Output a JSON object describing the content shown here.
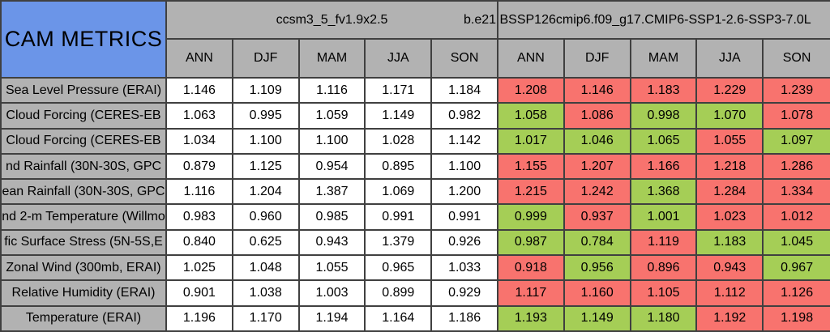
{
  "colors": {
    "blue": "#6b95e8",
    "gray": "#b2b2b2",
    "red": "#f8736e",
    "green": "#a5ce56",
    "border": "#404040",
    "white": "#ffffff"
  },
  "chart_data": {
    "type": "table",
    "title": "CAM METRICS",
    "column_groups": [
      "ccsm3_5_fv1.9x2.5",
      "b.e21.BSSP126cmip6.f09_g17.CMIP6-SSP1-2.6-SSP3-7.0L"
    ],
    "seasons": [
      "ANN",
      "DJF",
      "MAM",
      "JJA",
      "SON"
    ],
    "rows": [
      {
        "metric": "Sea Level Pressure (ERAI)",
        "model1_values": [
          "1.146",
          "1.109",
          "1.116",
          "1.171",
          "1.184"
        ],
        "model2_values": [
          "1.208",
          "1.146",
          "1.183",
          "1.229",
          "1.239"
        ],
        "model2_flags": [
          "red",
          "red",
          "red",
          "red",
          "red"
        ]
      },
      {
        "metric": "Cloud Forcing (CERES-EB",
        "model1_values": [
          "1.063",
          "0.995",
          "1.059",
          "1.149",
          "0.982"
        ],
        "model2_values": [
          "1.058",
          "1.086",
          "0.998",
          "1.070",
          "1.078"
        ],
        "model2_flags": [
          "green",
          "red",
          "green",
          "green",
          "red"
        ]
      },
      {
        "metric": "Cloud Forcing (CERES-EB",
        "model1_values": [
          "1.034",
          "1.100",
          "1.100",
          "1.028",
          "1.142"
        ],
        "model2_values": [
          "1.017",
          "1.046",
          "1.065",
          "1.055",
          "1.097"
        ],
        "model2_flags": [
          "green",
          "green",
          "green",
          "red",
          "green"
        ]
      },
      {
        "metric": "nd Rainfall (30N-30S, GPC",
        "model1_values": [
          "0.879",
          "1.125",
          "0.954",
          "0.895",
          "1.100"
        ],
        "model2_values": [
          "1.155",
          "1.207",
          "1.166",
          "1.218",
          "1.286"
        ],
        "model2_flags": [
          "red",
          "red",
          "red",
          "red",
          "red"
        ]
      },
      {
        "metric": "ean Rainfall (30N-30S, GPC",
        "model1_values": [
          "1.116",
          "1.204",
          "1.387",
          "1.069",
          "1.200"
        ],
        "model2_values": [
          "1.215",
          "1.242",
          "1.368",
          "1.284",
          "1.334"
        ],
        "model2_flags": [
          "red",
          "red",
          "green",
          "red",
          "red"
        ]
      },
      {
        "metric": "nd 2-m Temperature (Willmo",
        "model1_values": [
          "0.983",
          "0.960",
          "0.985",
          "0.991",
          "0.991"
        ],
        "model2_values": [
          "0.999",
          "0.937",
          "1.001",
          "1.023",
          "1.012"
        ],
        "model2_flags": [
          "green",
          "red",
          "green",
          "red",
          "red"
        ]
      },
      {
        "metric": "fic Surface Stress (5N-5S,E",
        "model1_values": [
          "0.840",
          "0.625",
          "0.943",
          "1.379",
          "0.926"
        ],
        "model2_values": [
          "0.987",
          "0.784",
          "1.119",
          "1.183",
          "1.045"
        ],
        "model2_flags": [
          "green",
          "green",
          "red",
          "green",
          "green"
        ]
      },
      {
        "metric": "Zonal Wind (300mb, ERAI)",
        "model1_values": [
          "1.025",
          "1.048",
          "1.055",
          "0.965",
          "1.033"
        ],
        "model2_values": [
          "0.918",
          "0.956",
          "0.896",
          "0.943",
          "0.967"
        ],
        "model2_flags": [
          "red",
          "green",
          "red",
          "red",
          "green"
        ]
      },
      {
        "metric": "Relative Humidity (ERAI)",
        "model1_values": [
          "0.901",
          "1.038",
          "1.003",
          "0.899",
          "0.929"
        ],
        "model2_values": [
          "1.117",
          "1.160",
          "1.105",
          "1.112",
          "1.126"
        ],
        "model2_flags": [
          "red",
          "red",
          "red",
          "red",
          "red"
        ]
      },
      {
        "metric": "Temperature (ERAI)",
        "model1_values": [
          "1.196",
          "1.170",
          "1.194",
          "1.164",
          "1.186"
        ],
        "model2_values": [
          "1.193",
          "1.149",
          "1.180",
          "1.192",
          "1.198"
        ],
        "model2_flags": [
          "green",
          "green",
          "green",
          "red",
          "red"
        ]
      }
    ]
  }
}
